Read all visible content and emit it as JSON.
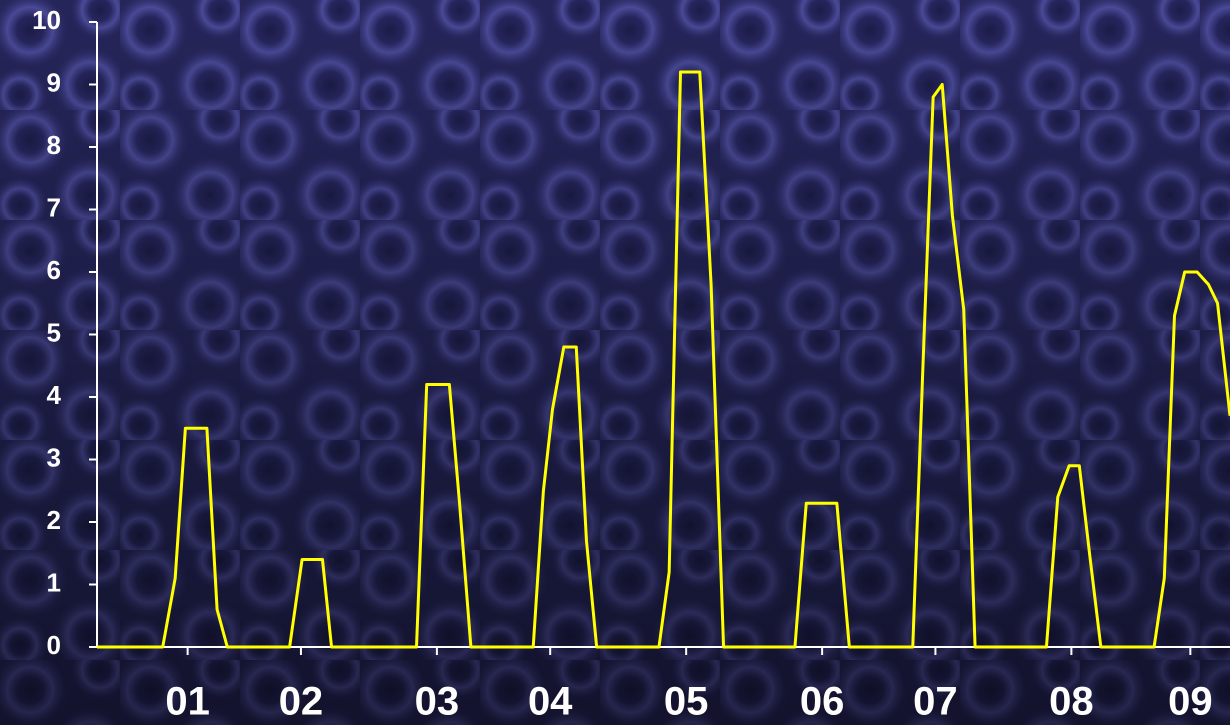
{
  "chart_data": {
    "type": "line",
    "x": [
      0,
      5.8,
      6.9,
      7.8,
      9.7,
      10.6,
      11.5,
      17.0,
      18.1,
      19.9,
      20.7,
      28.2,
      29.1,
      31.1,
      32.0,
      33.0,
      38.5,
      39.4,
      40.2,
      41.2,
      42.3,
      43.2,
      44.1,
      49.6,
      50.5,
      51.5,
      53.2,
      54.2,
      55.3,
      61.6,
      62.6,
      65.3,
      66.4,
      72.0,
      72.9,
      73.8,
      74.6,
      75.5,
      76.5,
      77.5,
      83.8,
      84.8,
      85.8,
      86.7,
      87.6,
      88.6,
      93.3,
      94.2,
      95.1,
      96.0,
      97.1,
      98.1,
      98.9,
      100
    ],
    "series": [
      {
        "color": "#ffff00",
        "values": [
          0,
          0,
          1.1,
          3.5,
          3.5,
          0.6,
          0,
          0,
          1.4,
          1.4,
          0,
          0,
          4.2,
          4.2,
          2.3,
          0,
          0,
          2.5,
          3.8,
          4.8,
          4.8,
          1.7,
          0,
          0,
          1.2,
          9.2,
          9.2,
          5.8,
          0,
          0,
          2.3,
          2.3,
          0,
          0,
          4.5,
          8.8,
          9.0,
          6.9,
          5.4,
          0,
          0,
          2.4,
          2.9,
          2.9,
          1.5,
          0,
          0,
          1.1,
          5.3,
          6.0,
          6.0,
          5.8,
          5.5,
          3.7
        ]
      }
    ],
    "xlim": [
      0,
      100
    ],
    "xticks": [
      {
        "value": 8,
        "label": "01"
      },
      {
        "value": 18,
        "label": "02"
      },
      {
        "value": 30,
        "label": "03"
      },
      {
        "value": 40,
        "label": "04"
      },
      {
        "value": 52,
        "label": "05"
      },
      {
        "value": 64,
        "label": "06"
      },
      {
        "value": 74,
        "label": "07"
      },
      {
        "value": 86,
        "label": "08"
      },
      {
        "value": 96.5,
        "label": "09"
      }
    ],
    "ylim": [
      0,
      10
    ],
    "yticks": [
      0,
      1,
      2,
      3,
      4,
      5,
      6,
      7,
      8,
      9,
      10
    ]
  }
}
